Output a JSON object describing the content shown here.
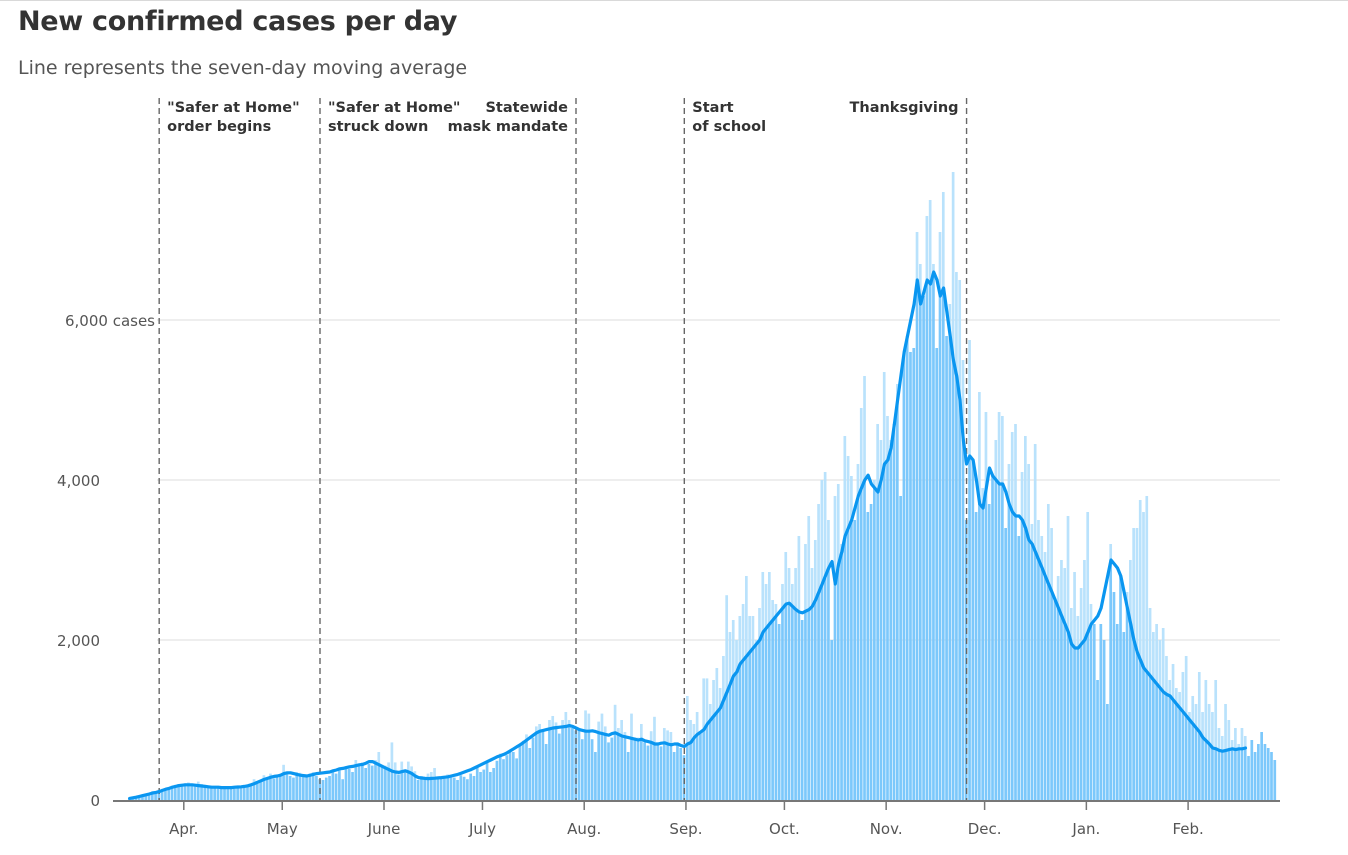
{
  "header": {
    "title": "New confirmed cases per day",
    "subtitle": "Line represents the seven-day moving average"
  },
  "colors": {
    "bar": "#7cc8fb",
    "bar_light": "#b9e2fc",
    "line": "#0a96f0",
    "grid": "#dddddd",
    "axis": "#777777",
    "event_line": "#666666"
  },
  "chart_data": {
    "type": "bar",
    "title": "New confirmed cases per day",
    "subtitle": "Line represents the seven-day moving average",
    "xlabel": "",
    "ylabel": "cases",
    "start_date": "Mar. 15",
    "end_date": "Feb. 28",
    "ylim": [
      0,
      8000
    ],
    "grid": true,
    "y_ticks": [
      {
        "value": 0,
        "label": "0"
      },
      {
        "value": 2000,
        "label": "2,000"
      },
      {
        "value": 4000,
        "label": "4,000"
      },
      {
        "value": 6000,
        "label": "6,000 cases"
      }
    ],
    "x_ticks": [
      {
        "day": 17,
        "label": "Apr."
      },
      {
        "day": 47,
        "label": "May"
      },
      {
        "day": 78,
        "label": "June"
      },
      {
        "day": 108,
        "label": "July"
      },
      {
        "day": 139,
        "label": "Aug."
      },
      {
        "day": 170,
        "label": "Sep."
      },
      {
        "day": 200,
        "label": "Oct."
      },
      {
        "day": 231,
        "label": "Nov."
      },
      {
        "day": 261,
        "label": "Dec."
      },
      {
        "day": 292,
        "label": "Jan."
      },
      {
        "day": 323,
        "label": "Feb."
      }
    ],
    "annotations": [
      {
        "day": 9,
        "lines": [
          "\"Safer at Home\"",
          "order begins"
        ],
        "side": "right"
      },
      {
        "day": 58,
        "lines": [
          "\"Safer at Home\"",
          "struck down"
        ],
        "side": "right"
      },
      {
        "day": 136,
        "lines": [
          "Statewide",
          "mask mandate"
        ],
        "side": "left"
      },
      {
        "day": 169,
        "lines": [
          "Start",
          "of school"
        ],
        "side": "right"
      },
      {
        "day": 255,
        "lines": [
          "Thanksgiving"
        ],
        "side": "left"
      }
    ],
    "series": [
      {
        "name": "Daily new cases",
        "type": "bar",
        "values": [
          20,
          35,
          40,
          55,
          60,
          75,
          90,
          110,
          100,
          130,
          140,
          150,
          160,
          180,
          190,
          200,
          170,
          210,
          220,
          200,
          190,
          230,
          200,
          180,
          170,
          160,
          150,
          170,
          140,
          160,
          155,
          150,
          160,
          170,
          180,
          175,
          190,
          200,
          260,
          220,
          250,
          310,
          290,
          330,
          270,
          300,
          310,
          440,
          330,
          300,
          280,
          350,
          340,
          310,
          320,
          330,
          350,
          300,
          260,
          250,
          280,
          300,
          360,
          330,
          380,
          260,
          420,
          390,
          350,
          500,
          420,
          470,
          400,
          450,
          430,
          500,
          600,
          440,
          430,
          470,
          720,
          470,
          320,
          480,
          350,
          480,
          420,
          360,
          250,
          300,
          280,
          330,
          350,
          400,
          260,
          290,
          270,
          320,
          300,
          280,
          250,
          310,
          290,
          260,
          330,
          300,
          420,
          350,
          380,
          480,
          350,
          400,
          490,
          580,
          510,
          560,
          620,
          600,
          520,
          700,
          740,
          820,
          650,
          780,
          920,
          950,
          880,
          700,
          1000,
          1050,
          970,
          830,
          1000,
          1100,
          1000,
          900,
          870,
          880,
          760,
          1120,
          1080,
          760,
          600,
          980,
          1080,
          920,
          720,
          780,
          1190,
          900,
          1000,
          850,
          600,
          1080,
          780,
          780,
          950,
          720,
          680,
          860,
          1040,
          720,
          670,
          900,
          870,
          850,
          600,
          700,
          650,
          560,
          1300,
          1000,
          950,
          1100,
          850,
          1520,
          1520,
          1200,
          1500,
          1650,
          1400,
          1800,
          2560,
          2100,
          2250,
          2000,
          2300,
          2450,
          2800,
          2300,
          2300,
          2000,
          2400,
          2850,
          2700,
          2850,
          2500,
          2450,
          2200,
          2700,
          3100,
          2900,
          2700,
          2900,
          3300,
          2250,
          3200,
          3550,
          2900,
          3250,
          3700,
          4000,
          4100,
          3500,
          2000,
          3800,
          3950,
          3200,
          4550,
          4300,
          4050,
          3500,
          4200,
          4900,
          5300,
          3600,
          3700,
          4000,
          4700,
          4500,
          5350,
          4800,
          4500,
          4700,
          5200,
          3800,
          5600,
          5800,
          5600,
          5650,
          7100,
          6700,
          6300,
          7300,
          7500,
          6700,
          5650,
          7100,
          7600,
          5800,
          6200,
          7850,
          6600,
          6500,
          5500,
          3500,
          5750,
          4250,
          3600,
          5100,
          3900,
          4850,
          3700,
          4050,
          4500,
          4850,
          4800,
          3400,
          4200,
          4600,
          4700,
          3300,
          4100,
          4550,
          4200,
          3450,
          4450,
          3500,
          3300,
          3100,
          3700,
          3400,
          2500,
          2800,
          3000,
          2900,
          3550,
          2400,
          2850,
          2300,
          2650,
          3000,
          3600,
          2450,
          2200,
          1500,
          2200,
          2000,
          1200,
          3200,
          2600,
          2200,
          2800,
          2100,
          2600,
          3000,
          3400,
          3400,
          3750,
          3600,
          3800,
          2400,
          2100,
          2200,
          2000,
          2150,
          1800,
          1500,
          1700,
          1400,
          1350,
          1600,
          1800,
          1100,
          1300,
          1200,
          1600,
          1100,
          1500,
          1200,
          1100,
          1500,
          900,
          800,
          1200,
          1000,
          750,
          900,
          700,
          900,
          800,
          550,
          750,
          600,
          700,
          850,
          700,
          650,
          600,
          500
        ]
      },
      {
        "name": "Seven-day moving average",
        "type": "line",
        "values": [
          20,
          28,
          35,
          45,
          55,
          65,
          75,
          88,
          95,
          105,
          120,
          135,
          145,
          160,
          170,
          180,
          185,
          190,
          190,
          190,
          185,
          180,
          175,
          170,
          165,
          160,
          160,
          160,
          155,
          155,
          155,
          155,
          160,
          162,
          165,
          170,
          178,
          190,
          205,
          222,
          240,
          258,
          270,
          285,
          295,
          300,
          310,
          330,
          340,
          340,
          330,
          320,
          310,
          305,
          300,
          310,
          320,
          330,
          335,
          340,
          345,
          350,
          365,
          375,
          390,
          395,
          405,
          415,
          420,
          430,
          440,
          445,
          460,
          480,
          480,
          460,
          440,
          420,
          400,
          380,
          360,
          350,
          345,
          355,
          365,
          350,
          330,
          300,
          280,
          275,
          270,
          268,
          270,
          272,
          276,
          280,
          285,
          290,
          300,
          310,
          320,
          335,
          350,
          365,
          380,
          400,
          420,
          440,
          460,
          480,
          500,
          520,
          540,
          555,
          570,
          590,
          615,
          640,
          665,
          690,
          720,
          750,
          780,
          810,
          840,
          860,
          870,
          880,
          890,
          900,
          905,
          910,
          915,
          920,
          930,
          920,
          900,
          880,
          870,
          860,
          860,
          865,
          855,
          840,
          830,
          820,
          810,
          830,
          840,
          820,
          800,
          790,
          780,
          770,
          760,
          750,
          760,
          740,
          730,
          720,
          700,
          700,
          710,
          715,
          700,
          690,
          700,
          700,
          680,
          670,
          700,
          720,
          780,
          820,
          850,
          880,
          950,
          1000,
          1050,
          1100,
          1150,
          1250,
          1350,
          1450,
          1550,
          1600,
          1700,
          1750,
          1800,
          1850,
          1900,
          1950,
          2000,
          2100,
          2150,
          2200,
          2250,
          2300,
          2350,
          2400,
          2450,
          2460,
          2420,
          2380,
          2350,
          2340,
          2360,
          2380,
          2420,
          2500,
          2600,
          2700,
          2800,
          2900,
          2980,
          2700,
          2950,
          3100,
          3300,
          3400,
          3500,
          3650,
          3800,
          3900,
          4000,
          4060,
          3950,
          3900,
          3850,
          4000,
          4200,
          4250,
          4400,
          4700,
          5000,
          5300,
          5600,
          5800,
          6000,
          6200,
          6500,
          6200,
          6350,
          6500,
          6450,
          6600,
          6500,
          6300,
          6400,
          6100,
          5800,
          5500,
          5300,
          5000,
          4500,
          4200,
          4300,
          4250,
          4000,
          3700,
          3650,
          3900,
          4150,
          4050,
          4000,
          3950,
          3950,
          3850,
          3700,
          3600,
          3550,
          3550,
          3500,
          3400,
          3250,
          3200,
          3100,
          3000,
          2900,
          2800,
          2700,
          2600,
          2500,
          2400,
          2300,
          2200,
          2100,
          1950,
          1900,
          1900,
          1950,
          2000,
          2100,
          2200,
          2250,
          2300,
          2400,
          2600,
          2800,
          3000,
          2950,
          2900,
          2800,
          2600,
          2400,
          2200,
          2000,
          1850,
          1750,
          1650,
          1600,
          1550,
          1500,
          1450,
          1400,
          1350,
          1320,
          1300,
          1250,
          1200,
          1150,
          1100,
          1050,
          1000,
          950,
          900,
          850,
          780,
          740,
          700,
          650,
          640,
          620,
          610,
          620,
          630,
          640,
          630,
          640,
          640,
          650
        ]
      }
    ]
  }
}
